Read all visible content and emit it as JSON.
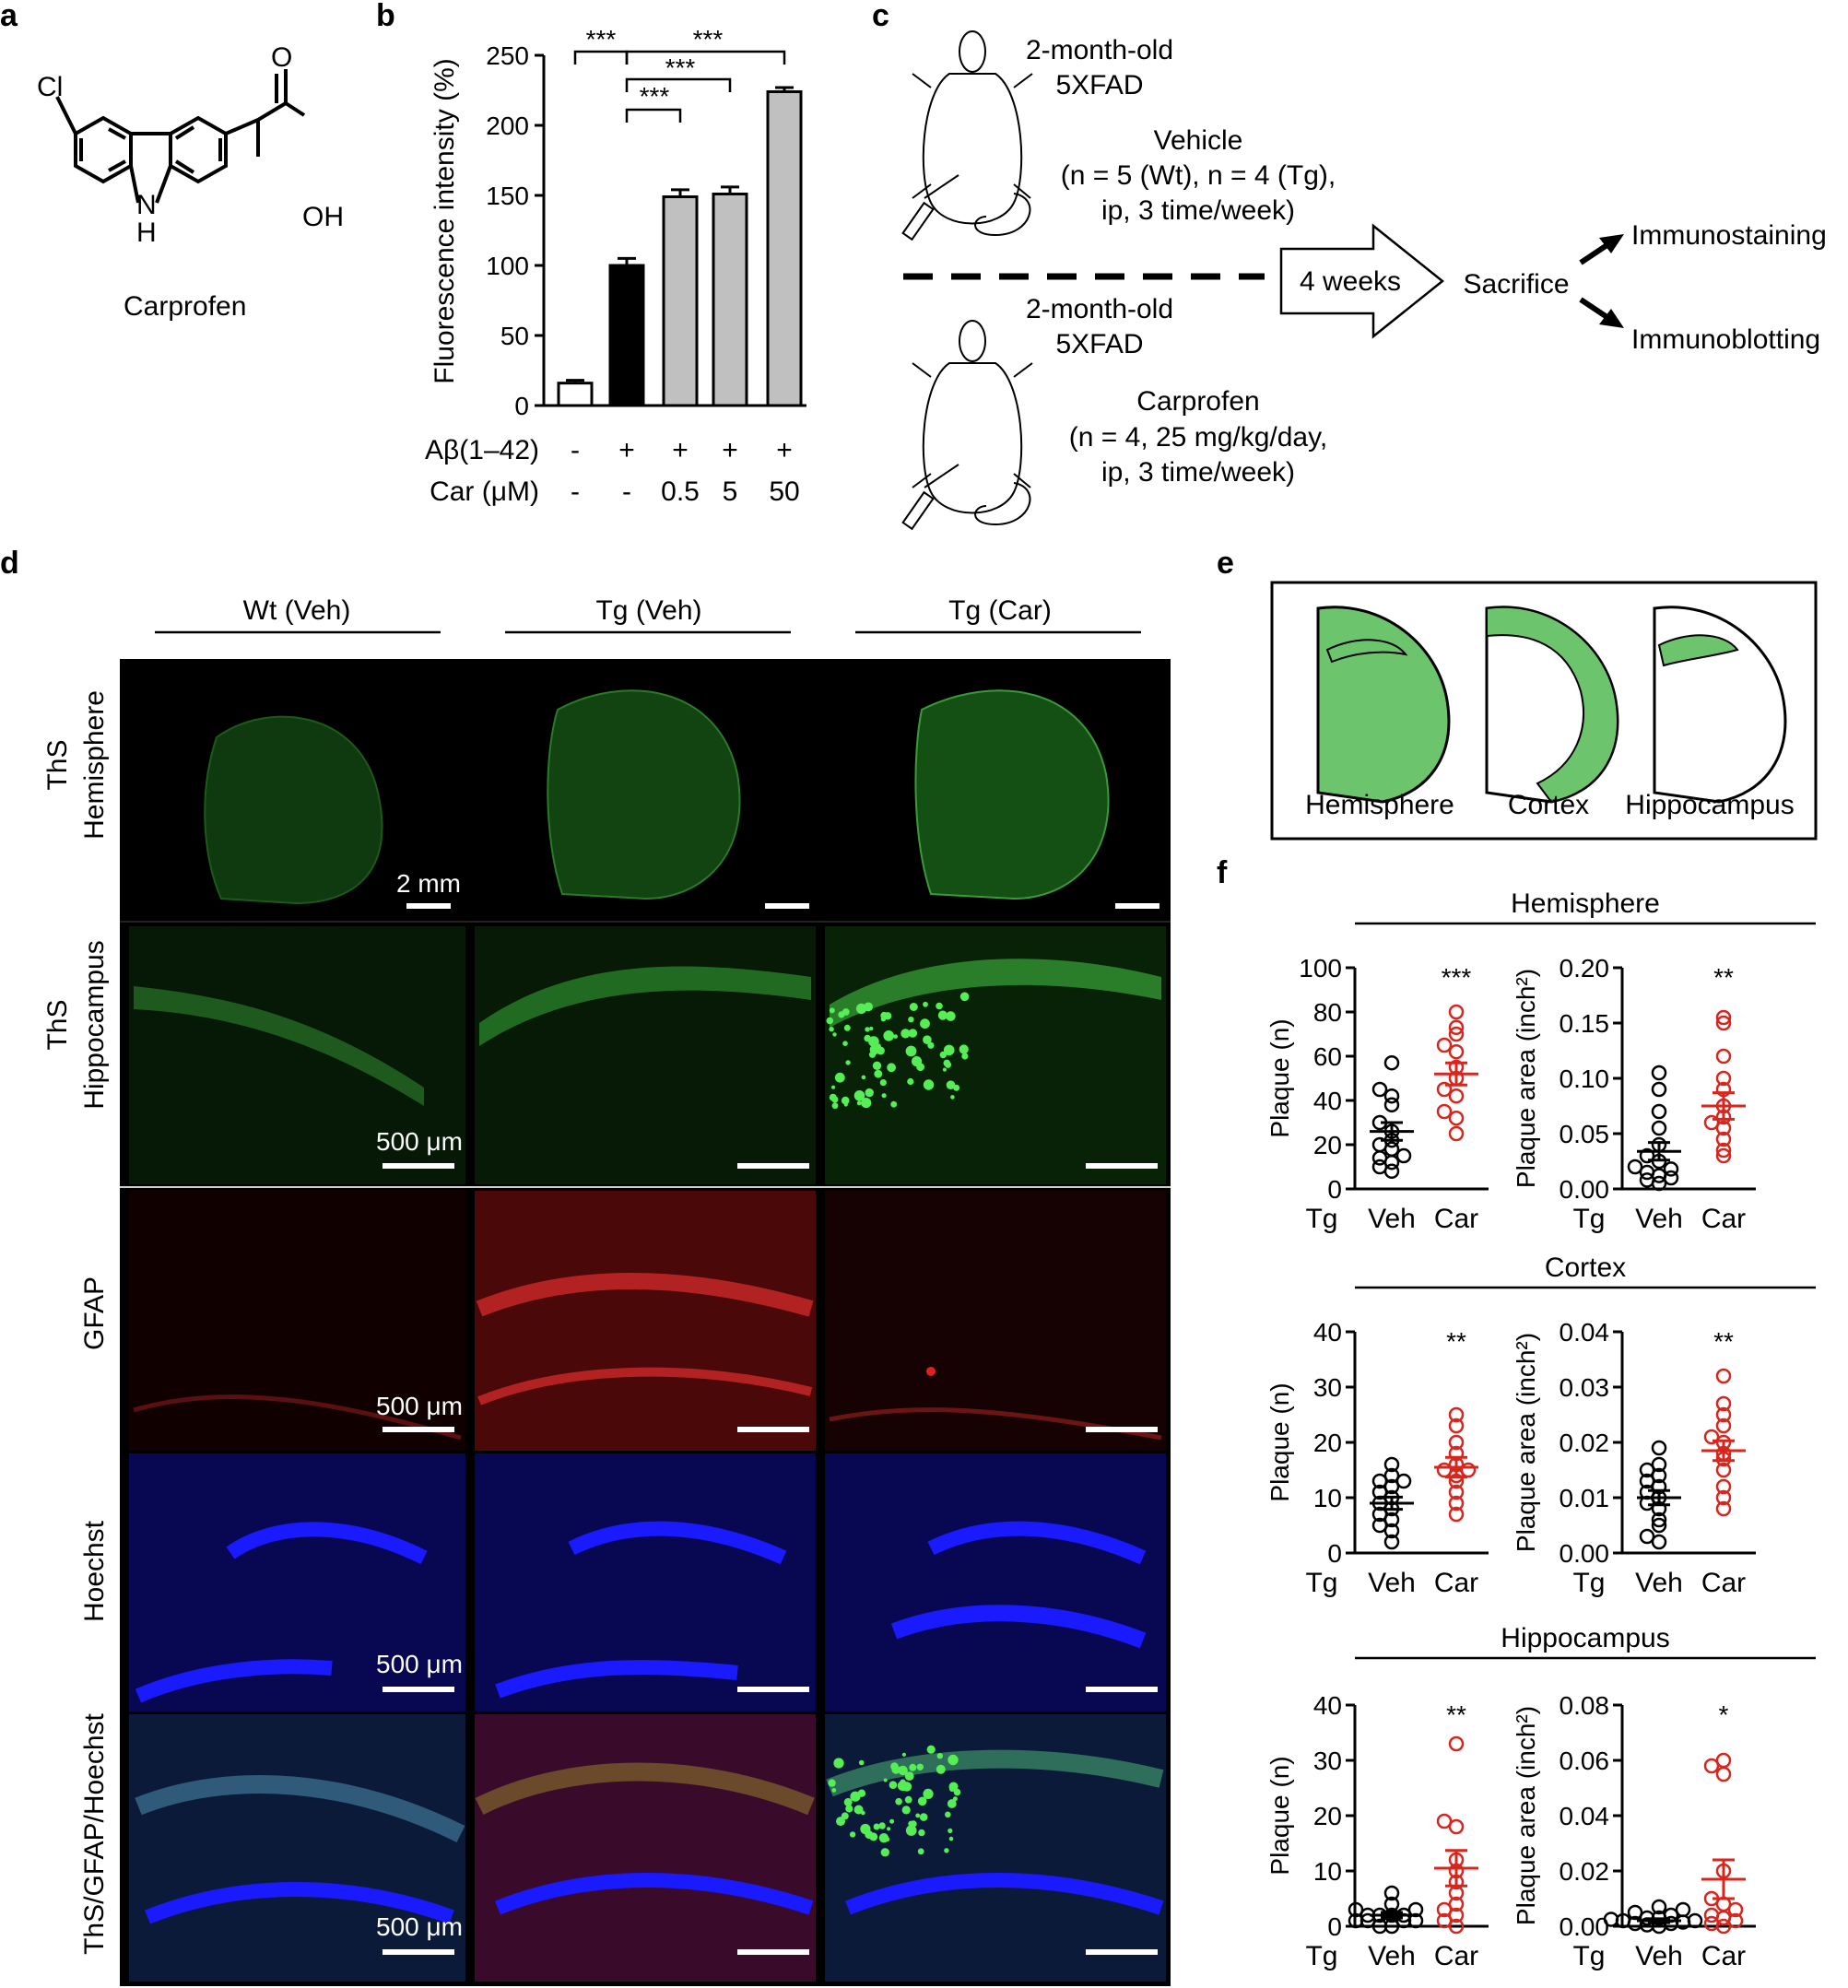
{
  "panel_labels": {
    "a": "a",
    "b": "b",
    "c": "c",
    "d": "d",
    "e": "e",
    "f": "f"
  },
  "panel_a": {
    "substituent_cl": "Cl",
    "substituent_nh_n": "N",
    "substituent_nh_h": "H",
    "substituent_o": "O",
    "substituent_oh": "OH",
    "compound_name": "Carprofen"
  },
  "panel_b": {
    "ylabel": "Fluorescence intensity (%)",
    "row_labels": {
      "abeta": "Aβ(1–42)",
      "car": "Car (μM)"
    },
    "abeta_values": [
      "-",
      "+",
      "+",
      "+",
      "+"
    ],
    "car_values": [
      "-",
      "-",
      "0.5",
      "5",
      "50"
    ],
    "sig": [
      "***",
      "***",
      "***",
      "***"
    ]
  },
  "panel_c": {
    "top_age": "2-month-old",
    "top_model": "5XFAD",
    "vehicle_title": "Vehicle",
    "vehicle_line1": "(n = 5 (Wt), n = 4 (Tg),",
    "vehicle_line2": "ip, 3 time/week)",
    "bottom_age": "2-month-old",
    "bottom_model": "5XFAD",
    "carprofen_title": "Carprofen",
    "carprofen_line1": "(n = 4, 25 mg/kg/day,",
    "carprofen_line2": "ip, 3 time/week)",
    "duration": "4 weeks",
    "sacrifice": "Sacrifice",
    "out1": "Immunostaining",
    "out2": "Immunoblotting"
  },
  "panel_d": {
    "columns": [
      "Wt (Veh)",
      "Tg (Veh)",
      "Tg (Car)"
    ],
    "row_label_ths": "ThS",
    "row_label_hemisphere": "Hemisphere",
    "row_label_hippocampus": "Hippocampus",
    "row_label_gfap": "GFAP",
    "row_label_hoechst": "Hoechst",
    "row_label_merge": "ThS/GFAP/Hoechst",
    "scale_hemisphere": "2 mm",
    "scale_micro": "500 μm"
  },
  "panel_e": {
    "labels": [
      "Hemisphere",
      "Cortex",
      "Hippocampus"
    ]
  },
  "colors": {
    "veh_points": "#000000",
    "car_points": "#d7261e",
    "bar_gray": "#c0c0c0",
    "bar_black": "#000000",
    "region_green": "#6cc56c"
  },
  "chart_data": [
    {
      "type": "bar",
      "panel": "b",
      "categories": [
        "1",
        "2",
        "3",
        "4",
        "5"
      ],
      "values": [
        16,
        100,
        149,
        151,
        224
      ],
      "errors": [
        2,
        5,
        5,
        5,
        3
      ],
      "fills": [
        "#ffffff",
        "#000000",
        "#c0c0c0",
        "#c0c0c0",
        "#c0c0c0"
      ],
      "ylabel": "Fluorescence intensity (%)",
      "ylim": [
        0,
        250
      ],
      "yticks": [
        0,
        50,
        100,
        150,
        200,
        250
      ]
    },
    {
      "type": "scatter",
      "panel": "f",
      "region": "Hemisphere",
      "metric": "count",
      "ylabel": "Plaque (n)",
      "ylim": [
        0,
        100
      ],
      "yticks": [
        0,
        20,
        40,
        60,
        80,
        100
      ],
      "group_prefix": "Tg",
      "groups": [
        "Veh",
        "Car"
      ],
      "sig": "***",
      "series": [
        {
          "name": "Veh",
          "mean": 26,
          "sem": 4,
          "values": [
            8,
            10,
            12,
            14,
            15,
            18,
            20,
            22,
            26,
            30,
            38,
            42,
            45,
            57
          ]
        },
        {
          "name": "Car",
          "mean": 52,
          "sem": 5,
          "values": [
            25,
            32,
            35,
            42,
            45,
            50,
            55,
            62,
            65,
            70,
            73,
            80
          ]
        }
      ]
    },
    {
      "type": "scatter",
      "panel": "f",
      "region": "Hemisphere",
      "metric": "area",
      "ylabel": "Plaque area (inch²)",
      "ylim": [
        0,
        0.2
      ],
      "yticks": [
        0,
        0.05,
        0.1,
        0.15,
        0.2
      ],
      "ytick_labels": [
        "0.00",
        "0.05",
        "0.10",
        "0.15",
        "0.20"
      ],
      "group_prefix": "Tg",
      "groups": [
        "Veh",
        "Car"
      ],
      "sig": "**",
      "series": [
        {
          "name": "Veh",
          "mean": 0.034,
          "sem": 0.008,
          "values": [
            0.005,
            0.008,
            0.01,
            0.012,
            0.015,
            0.018,
            0.02,
            0.025,
            0.03,
            0.04,
            0.055,
            0.07,
            0.09,
            0.105
          ]
        },
        {
          "name": "Car",
          "mean": 0.075,
          "sem": 0.012,
          "values": [
            0.03,
            0.035,
            0.045,
            0.055,
            0.06,
            0.065,
            0.075,
            0.09,
            0.1,
            0.12,
            0.15,
            0.155
          ]
        }
      ]
    },
    {
      "type": "scatter",
      "panel": "f",
      "region": "Cortex",
      "metric": "count",
      "ylabel": "Plaque (n)",
      "ylim": [
        0,
        40
      ],
      "yticks": [
        0,
        10,
        20,
        30,
        40
      ],
      "group_prefix": "Tg",
      "groups": [
        "Veh",
        "Car"
      ],
      "sig": "**",
      "series": [
        {
          "name": "Veh",
          "mean": 9,
          "sem": 1.1,
          "values": [
            2,
            4,
            5,
            6,
            7,
            8,
            9,
            10,
            11,
            12,
            13,
            13,
            14,
            16
          ]
        },
        {
          "name": "Car",
          "mean": 15.5,
          "sem": 1.8,
          "values": [
            7,
            9,
            11,
            13,
            14,
            15,
            15,
            16,
            18,
            20,
            23,
            25
          ]
        }
      ]
    },
    {
      "type": "scatter",
      "panel": "f",
      "region": "Cortex",
      "metric": "area",
      "ylabel": "Plaque area  (inch²)",
      "ylim": [
        0,
        0.04
      ],
      "yticks": [
        0,
        0.01,
        0.02,
        0.03,
        0.04
      ],
      "ytick_labels": [
        "0.00",
        "0.01",
        "0.02",
        "0.03",
        "0.04"
      ],
      "group_prefix": "Tg",
      "groups": [
        "Veh",
        "Car"
      ],
      "sig": "**",
      "series": [
        {
          "name": "Veh",
          "mean": 0.01,
          "sem": 0.0013,
          "values": [
            0.002,
            0.003,
            0.005,
            0.006,
            0.008,
            0.009,
            0.01,
            0.011,
            0.012,
            0.013,
            0.014,
            0.015,
            0.016,
            0.019
          ]
        },
        {
          "name": "Car",
          "mean": 0.0185,
          "sem": 0.0018,
          "values": [
            0.008,
            0.01,
            0.012,
            0.015,
            0.017,
            0.018,
            0.02,
            0.021,
            0.023,
            0.025,
            0.027,
            0.032
          ]
        }
      ]
    },
    {
      "type": "scatter",
      "panel": "f",
      "region": "Hippocampus",
      "metric": "count",
      "ylabel": "Plaque (n)",
      "ylim": [
        0,
        40
      ],
      "yticks": [
        0,
        10,
        20,
        30,
        40
      ],
      "group_prefix": "Tg",
      "groups": [
        "Veh",
        "Car"
      ],
      "sig": "**",
      "series": [
        {
          "name": "Veh",
          "mean": 2,
          "sem": 0.5,
          "values": [
            0,
            0,
            1,
            1,
            1,
            1,
            2,
            2,
            2,
            2,
            3,
            3,
            4,
            6
          ]
        },
        {
          "name": "Car",
          "mean": 10.5,
          "sem": 3.2,
          "values": [
            0,
            1,
            2,
            3,
            4,
            6,
            8,
            10,
            12,
            18,
            19,
            33
          ]
        }
      ]
    },
    {
      "type": "scatter",
      "panel": "f",
      "region": "Hippocampus",
      "metric": "area",
      "ylabel": "Plaque area (inch²)",
      "ylim": [
        0,
        0.08
      ],
      "yticks": [
        0,
        0.02,
        0.04,
        0.06,
        0.08
      ],
      "ytick_labels": [
        "0.00",
        "0.02",
        "0.04",
        "0.06",
        "0.08"
      ],
      "group_prefix": "Tg",
      "groups": [
        "Veh",
        "Car"
      ],
      "sig": "*",
      "series": [
        {
          "name": "Veh",
          "mean": 0.002,
          "sem": 0.0007,
          "values": [
            0,
            0.0005,
            0.001,
            0.001,
            0.0015,
            0.002,
            0.002,
            0.0025,
            0.003,
            0.003,
            0.004,
            0.005,
            0.006,
            0.007
          ]
        },
        {
          "name": "Car",
          "mean": 0.017,
          "sem": 0.007,
          "values": [
            0,
            0.001,
            0.002,
            0.003,
            0.004,
            0.006,
            0.008,
            0.01,
            0.02,
            0.055,
            0.058,
            0.06
          ]
        }
      ]
    }
  ]
}
